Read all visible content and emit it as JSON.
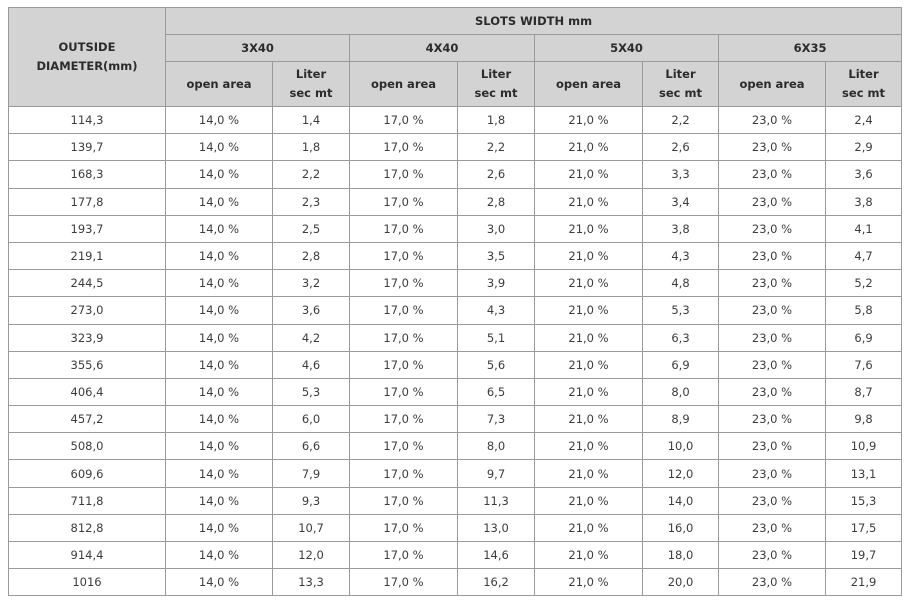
{
  "table": {
    "corner_header_line1": "OUTSIDE",
    "corner_header_line2": "DIAMETER(mm)",
    "group_header": "SLOTS WIDTH mm",
    "slot_sizes": [
      "3X40",
      "4X40",
      "5X40",
      "6X35"
    ],
    "open_area_label": "open area",
    "liter_label_line1": "Liter",
    "liter_label_line2": "sec mt",
    "rows": [
      {
        "diameter": "114,3",
        "c": [
          {
            "open_area": "14,0 %",
            "liter": "1,4"
          },
          {
            "open_area": "17,0 %",
            "liter": "1,8"
          },
          {
            "open_area": "21,0 %",
            "liter": "2,2"
          },
          {
            "open_area": "23,0 %",
            "liter": "2,4"
          }
        ]
      },
      {
        "diameter": "139,7",
        "c": [
          {
            "open_area": "14,0 %",
            "liter": "1,8"
          },
          {
            "open_area": "17,0 %",
            "liter": "2,2"
          },
          {
            "open_area": "21,0 %",
            "liter": "2,6"
          },
          {
            "open_area": "23,0 %",
            "liter": "2,9"
          }
        ]
      },
      {
        "diameter": "168,3",
        "c": [
          {
            "open_area": "14,0 %",
            "liter": "2,2"
          },
          {
            "open_area": "17,0 %",
            "liter": "2,6"
          },
          {
            "open_area": "21,0 %",
            "liter": "3,3"
          },
          {
            "open_area": "23,0 %",
            "liter": "3,6"
          }
        ]
      },
      {
        "diameter": "177,8",
        "c": [
          {
            "open_area": "14,0 %",
            "liter": "2,3"
          },
          {
            "open_area": "17,0 %",
            "liter": "2,8"
          },
          {
            "open_area": "21,0 %",
            "liter": "3,4"
          },
          {
            "open_area": "23,0 %",
            "liter": "3,8"
          }
        ]
      },
      {
        "diameter": "193,7",
        "c": [
          {
            "open_area": "14,0 %",
            "liter": "2,5"
          },
          {
            "open_area": "17,0 %",
            "liter": "3,0"
          },
          {
            "open_area": "21,0 %",
            "liter": "3,8"
          },
          {
            "open_area": "23,0 %",
            "liter": "4,1"
          }
        ]
      },
      {
        "diameter": "219,1",
        "c": [
          {
            "open_area": "14,0 %",
            "liter": "2,8"
          },
          {
            "open_area": "17,0 %",
            "liter": "3,5"
          },
          {
            "open_area": "21,0 %",
            "liter": "4,3"
          },
          {
            "open_area": "23,0 %",
            "liter": "4,7"
          }
        ]
      },
      {
        "diameter": "244,5",
        "c": [
          {
            "open_area": "14,0 %",
            "liter": "3,2"
          },
          {
            "open_area": "17,0 %",
            "liter": "3,9"
          },
          {
            "open_area": "21,0 %",
            "liter": "4,8"
          },
          {
            "open_area": "23,0 %",
            "liter": "5,2"
          }
        ]
      },
      {
        "diameter": "273,0",
        "c": [
          {
            "open_area": "14,0 %",
            "liter": "3,6"
          },
          {
            "open_area": "17,0 %",
            "liter": "4,3"
          },
          {
            "open_area": "21,0 %",
            "liter": "5,3"
          },
          {
            "open_area": "23,0 %",
            "liter": "5,8"
          }
        ]
      },
      {
        "diameter": "323,9",
        "c": [
          {
            "open_area": "14,0 %",
            "liter": "4,2"
          },
          {
            "open_area": "17,0 %",
            "liter": "5,1"
          },
          {
            "open_area": "21,0 %",
            "liter": "6,3"
          },
          {
            "open_area": "23,0 %",
            "liter": "6,9"
          }
        ]
      },
      {
        "diameter": "355,6",
        "c": [
          {
            "open_area": "14,0 %",
            "liter": "4,6"
          },
          {
            "open_area": "17,0 %",
            "liter": "5,6"
          },
          {
            "open_area": "21,0 %",
            "liter": "6,9"
          },
          {
            "open_area": "23,0 %",
            "liter": "7,6"
          }
        ]
      },
      {
        "diameter": "406,4",
        "c": [
          {
            "open_area": "14,0 %",
            "liter": "5,3"
          },
          {
            "open_area": "17,0 %",
            "liter": "6,5"
          },
          {
            "open_area": "21,0 %",
            "liter": "8,0"
          },
          {
            "open_area": "23,0 %",
            "liter": "8,7"
          }
        ]
      },
      {
        "diameter": "457,2",
        "c": [
          {
            "open_area": "14,0 %",
            "liter": "6,0"
          },
          {
            "open_area": "17,0 %",
            "liter": "7,3"
          },
          {
            "open_area": "21,0 %",
            "liter": "8,9"
          },
          {
            "open_area": "23,0 %",
            "liter": "9,8"
          }
        ]
      },
      {
        "diameter": "508,0",
        "c": [
          {
            "open_area": "14,0 %",
            "liter": "6,6"
          },
          {
            "open_area": "17,0 %",
            "liter": "8,0"
          },
          {
            "open_area": "21,0 %",
            "liter": "10,0"
          },
          {
            "open_area": "23,0 %",
            "liter": "10,9"
          }
        ]
      },
      {
        "diameter": "609,6",
        "c": [
          {
            "open_area": "14,0 %",
            "liter": "7,9"
          },
          {
            "open_area": "17,0 %",
            "liter": "9,7"
          },
          {
            "open_area": "21,0 %",
            "liter": "12,0"
          },
          {
            "open_area": "23,0 %",
            "liter": "13,1"
          }
        ]
      },
      {
        "diameter": "711,8",
        "c": [
          {
            "open_area": "14,0 %",
            "liter": "9,3"
          },
          {
            "open_area": "17,0 %",
            "liter": "11,3"
          },
          {
            "open_area": "21,0 %",
            "liter": "14,0"
          },
          {
            "open_area": "23,0 %",
            "liter": "15,3"
          }
        ]
      },
      {
        "diameter": "812,8",
        "c": [
          {
            "open_area": "14,0 %",
            "liter": "10,7"
          },
          {
            "open_area": "17,0 %",
            "liter": "13,0"
          },
          {
            "open_area": "21,0 %",
            "liter": "16,0"
          },
          {
            "open_area": "23,0 %",
            "liter": "17,5"
          }
        ]
      },
      {
        "diameter": "914,4",
        "c": [
          {
            "open_area": "14,0 %",
            "liter": "12,0"
          },
          {
            "open_area": "17,0 %",
            "liter": "14,6"
          },
          {
            "open_area": "21,0 %",
            "liter": "18,0"
          },
          {
            "open_area": "23,0 %",
            "liter": "19,7"
          }
        ]
      },
      {
        "diameter": "1016",
        "c": [
          {
            "open_area": "14,0 %",
            "liter": "13,3"
          },
          {
            "open_area": "17,0 %",
            "liter": "16,2"
          },
          {
            "open_area": "21,0 %",
            "liter": "20,0"
          },
          {
            "open_area": "23,0 %",
            "liter": "21,9"
          }
        ]
      }
    ]
  }
}
